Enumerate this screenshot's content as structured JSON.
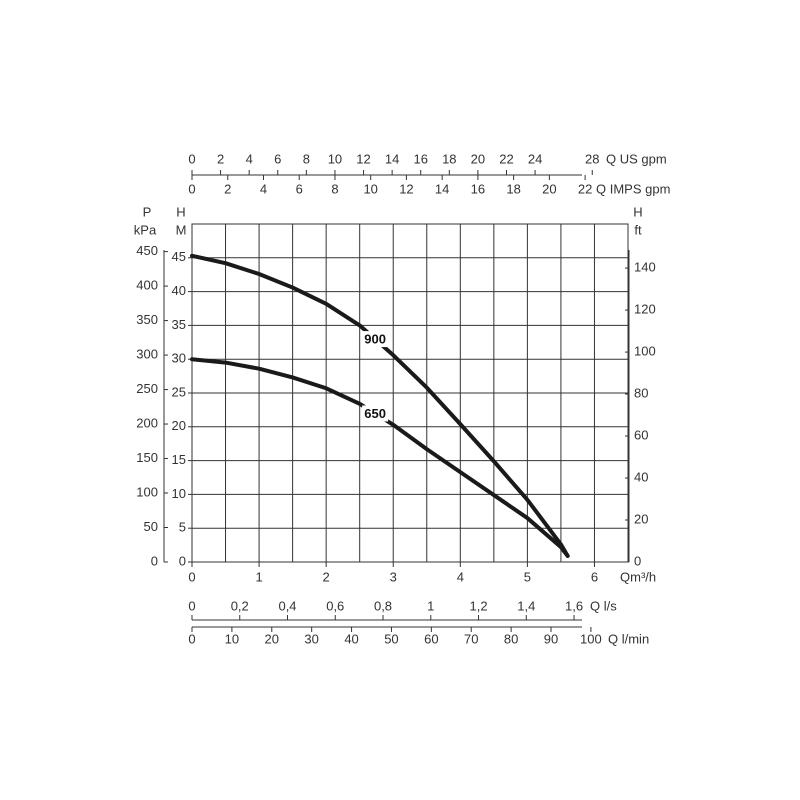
{
  "chart_data": {
    "type": "line",
    "x": [
      0,
      0.5,
      1,
      1.5,
      2,
      2.5,
      3,
      3.5,
      4,
      4.5,
      5,
      5.5,
      5.6
    ],
    "series": [
      {
        "name": "900",
        "color": "#1a1a1a",
        "values": [
          45.3,
          44.2,
          42.6,
          40.6,
          38.2,
          35.0,
          30.6,
          25.8,
          20.4,
          14.9,
          9.2,
          2.6,
          0.9
        ]
      },
      {
        "name": "650",
        "color": "#1a1a1a",
        "values": [
          30.0,
          29.5,
          28.6,
          27.3,
          25.7,
          23.4,
          20.3,
          16.7,
          13.3,
          9.9,
          6.5,
          2.2,
          0.9
        ]
      }
    ],
    "xlabel": "Qm³/h",
    "ylabel": {
      "symbol": "H",
      "unit": "M"
    },
    "xlim": [
      0,
      6.5
    ],
    "xticks": [
      0,
      1,
      2,
      3,
      4,
      5,
      6
    ],
    "ylim": [
      0,
      50
    ],
    "yticks": [
      0,
      5,
      10,
      15,
      20,
      25,
      30,
      35,
      40,
      45
    ],
    "xgrid": [
      0,
      0.5,
      1,
      1.5,
      2,
      2.5,
      3,
      3.5,
      4,
      4.5,
      5,
      5.5,
      6,
      6.5
    ],
    "ygrid": [
      0,
      5,
      10,
      15,
      20,
      25,
      30,
      35,
      40,
      45,
      50
    ],
    "extra_axes": [
      {
        "side": "top",
        "label": "Q US gpm",
        "lim": [
          0,
          30.5
        ],
        "ticks": [
          0,
          2,
          4,
          6,
          8,
          10,
          12,
          14,
          16,
          18,
          20,
          22,
          24,
          28
        ]
      },
      {
        "side": "top",
        "label": "Q IMPS gpm",
        "lim": [
          0,
          24.4
        ],
        "ticks": [
          0,
          2,
          4,
          6,
          8,
          10,
          12,
          14,
          16,
          18,
          20,
          22
        ]
      },
      {
        "side": "bottom",
        "label": "Q l/s",
        "lim": [
          0,
          1.826
        ],
        "ticks": [
          0,
          {
            "value": 0.2,
            "label": "0,2"
          },
          {
            "value": 0.4,
            "label": "0,4"
          },
          {
            "value": 0.6,
            "label": "0,6"
          },
          {
            "value": 0.8,
            "label": "0,8"
          },
          1,
          {
            "value": 1.2,
            "label": "1,2"
          },
          {
            "value": 1.4,
            "label": "1,4"
          },
          {
            "value": 1.6,
            "label": "1,6"
          }
        ]
      },
      {
        "side": "bottom",
        "label": "Q l/min",
        "lim": [
          0,
          109.3
        ],
        "ticks": [
          0,
          10,
          20,
          30,
          40,
          50,
          60,
          70,
          80,
          90,
          100
        ]
      },
      {
        "side": "left",
        "symbol": "P",
        "unit": "kPa",
        "lim": [
          0,
          490
        ],
        "ticks": [
          0,
          50,
          100,
          150,
          200,
          250,
          300,
          350,
          400,
          450
        ]
      },
      {
        "side": "right",
        "symbol": "H",
        "unit": "ft",
        "lim": [
          0,
          161
        ],
        "ticks": [
          0,
          20,
          40,
          60,
          80,
          100,
          120,
          140
        ]
      }
    ]
  }
}
